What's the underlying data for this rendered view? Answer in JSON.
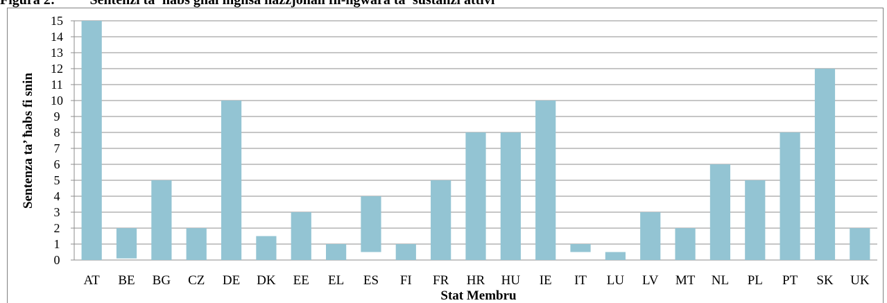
{
  "figure": {
    "label": "Figura 2:",
    "title": "Sentenzi ta' ħabs għal ingħsa nazzjonali fil-ħgwara ta' sustanzi attivi"
  },
  "chart_data": {
    "type": "bar",
    "subtype": "floating",
    "xlabel": "Stat Membru",
    "ylabel": "Sentenza ta’ ħabs fi snin",
    "ylim": [
      0,
      15
    ],
    "yticks": [
      0,
      1,
      2,
      3,
      4,
      5,
      6,
      7,
      8,
      9,
      10,
      11,
      12,
      13,
      14,
      15
    ],
    "grid": true,
    "legend": "none",
    "bar_color": "#93c4d3",
    "categories": [
      "AT",
      "BE",
      "BG",
      "CZ",
      "DE",
      "DK",
      "EE",
      "EL",
      "ES",
      "FI",
      "FR",
      "HR",
      "HU",
      "IE",
      "IT",
      "LU",
      "LV",
      "MT",
      "NL",
      "PL",
      "PT",
      "SK",
      "UK"
    ],
    "low": [
      0,
      0.1,
      0,
      0,
      0,
      0,
      0,
      0,
      0.5,
      0,
      0,
      0,
      0,
      0,
      0.5,
      0,
      0,
      0,
      0,
      0,
      0,
      0,
      0
    ],
    "high": [
      15,
      2,
      5,
      2,
      10,
      1.5,
      3,
      1,
      4,
      1,
      5,
      8,
      8,
      10,
      1,
      0.5,
      3,
      2,
      6,
      5,
      8,
      12,
      2
    ]
  }
}
